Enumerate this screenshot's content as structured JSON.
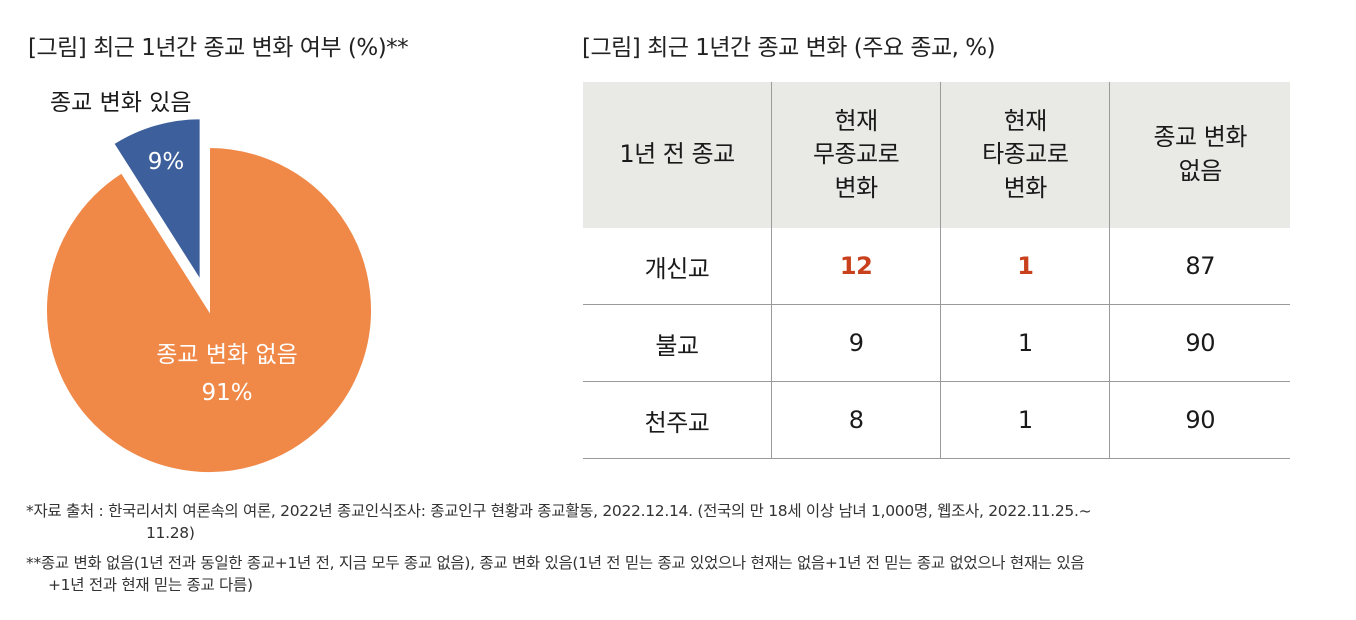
{
  "chart_data": [
    {
      "type": "pie",
      "title": "[그림] 최근 1년간 종교 변화 여부 (%)**",
      "slices": [
        {
          "label": "종교 변화 있음",
          "value": 9,
          "value_label": "9%",
          "color": "#3d5f9c",
          "exploded": true
        },
        {
          "label": "종교 변화 없음",
          "value": 91,
          "value_label": "91%",
          "color": "#f08848",
          "exploded": false
        }
      ]
    },
    {
      "type": "table",
      "title": "[그림] 최근 1년간 종교 변화 (주요 종교, %)",
      "columns": [
        "1년 전 종교",
        "현재\n무종교로\n변화",
        "현재\n타종교로\n변화",
        "종교 변화\n없음"
      ],
      "rows": [
        {
          "religion": "개신교",
          "values": [
            "12",
            "1",
            "87"
          ],
          "highlight": [
            true,
            true,
            false
          ]
        },
        {
          "religion": "불교",
          "values": [
            "9",
            "1",
            "90"
          ],
          "highlight": [
            false,
            false,
            false
          ]
        },
        {
          "religion": "천주교",
          "values": [
            "8",
            "1",
            "90"
          ],
          "highlight": [
            false,
            false,
            false
          ]
        }
      ],
      "highlight_color": "#c8401c",
      "header_bg": "#e9e9e6"
    }
  ],
  "notes": {
    "source_line1": "*자료 출처 : 한국리서치 여론속의 여론, 2022년 종교인식조사: 종교인구 현황과 종교활동, 2022.12.14. (전국의 만 18세 이상 남녀 1,000명, 웹조사, 2022.11.25.~",
    "source_line2": "11.28)",
    "def_line1": "**종교 변화 없음(1년 전과 동일한 종교+1년 전, 지금 모두 종교 없음), 종교 변화 있음(1년 전 믿는 종교 있었으나 현재는 없음+1년 전 믿는 종교 없었으나 현재는 있음",
    "def_line2": "+1년 전과 현재 믿는 종교 다름)"
  }
}
